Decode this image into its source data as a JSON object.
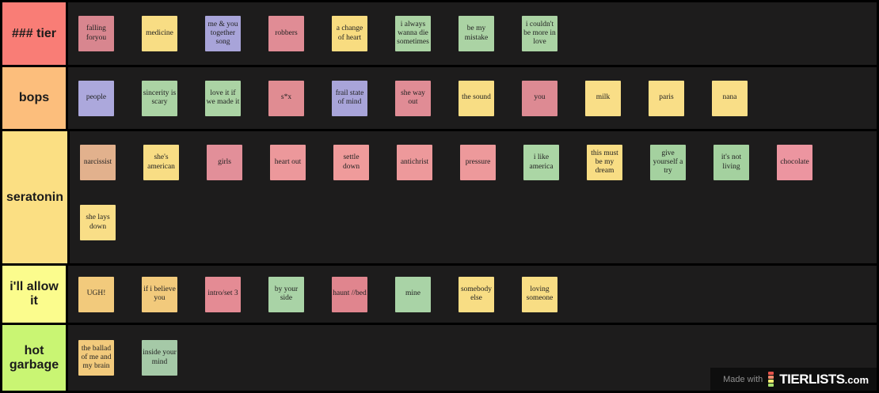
{
  "page": {
    "background": "#1d1c1c",
    "border_color": "#000000"
  },
  "tiers": [
    {
      "label": "### tier",
      "color": "#f97d76",
      "items": [
        {
          "label": "falling foryou",
          "color": "#d8868f"
        },
        {
          "label": "medicine",
          "color": "#f8dd84"
        },
        {
          "label": "me & you together song",
          "color": "#a8a4d9"
        },
        {
          "label": "robbers",
          "color": "#e08c95"
        },
        {
          "label": "a change of heart",
          "color": "#f8dc80"
        },
        {
          "label": "i always wanna die sometimes",
          "color": "#abd3a4"
        },
        {
          "label": "be my mistake",
          "color": "#abd3a4"
        },
        {
          "label": "i couldn't be more in love",
          "color": "#abd3a4"
        }
      ]
    },
    {
      "label": "bops",
      "color": "#fcbe7c",
      "items": [
        {
          "label": "people",
          "color": "#aca8dc"
        },
        {
          "label": "sincerity is scary",
          "color": "#abd3a4"
        },
        {
          "label": "love it if we made it",
          "color": "#abd3a4"
        },
        {
          "label": "s*x",
          "color": "#e08c92"
        },
        {
          "label": "frail state of mind",
          "color": "#a8a4d9"
        },
        {
          "label": "she way out",
          "color": "#e08c95"
        },
        {
          "label": "the sound",
          "color": "#f8dd84"
        },
        {
          "label": "you",
          "color": "#dd8a93"
        },
        {
          "label": "milk",
          "color": "#f9de87"
        },
        {
          "label": "paris",
          "color": "#f9de87"
        },
        {
          "label": "nana",
          "color": "#f9de87"
        }
      ]
    },
    {
      "label": "seratonin",
      "color": "#fbdf83",
      "items": [
        {
          "label": "narcissist",
          "color": "#e2b18d"
        },
        {
          "label": "she's american",
          "color": "#f8dd84"
        },
        {
          "label": "girls",
          "color": "#e28f99"
        },
        {
          "label": "heart out",
          "color": "#ec989b"
        },
        {
          "label": "settle down",
          "color": "#ef9b9b"
        },
        {
          "label": "antichrist",
          "color": "#ed999b"
        },
        {
          "label": "pressure",
          "color": "#ed999b"
        },
        {
          "label": "i like america",
          "color": "#abd6a5"
        },
        {
          "label": "this must be my dream",
          "color": "#f8dd84"
        },
        {
          "label": "give yourself a try",
          "color": "#a4d19f"
        },
        {
          "label": "it's not living",
          "color": "#a4d19f"
        },
        {
          "label": "chocolate",
          "color": "#ec95a0"
        },
        {
          "label": "she lays down",
          "color": "#f9de87"
        }
      ]
    },
    {
      "label": "i'll allow it",
      "color": "#fbfc8d",
      "items": [
        {
          "label": "UGH!",
          "color": "#f2ca7c"
        },
        {
          "label": "if i believe you",
          "color": "#f2ca7c"
        },
        {
          "label": "intro/set 3",
          "color": "#e48b94"
        },
        {
          "label": "by your side",
          "color": "#a9d3a6"
        },
        {
          "label": "haunt //bed",
          "color": "#e0858e"
        },
        {
          "label": "mine",
          "color": "#a9d3a6"
        },
        {
          "label": "somebody else",
          "color": "#f8dd84"
        },
        {
          "label": "loving someone",
          "color": "#f8dd84"
        }
      ]
    },
    {
      "label": "hot garbage",
      "color": "#c9f573",
      "items": [
        {
          "label": "the ballad of me and my brain",
          "color": "#f2ca7c"
        },
        {
          "label": "inside your mind",
          "color": "#a5c9a7"
        }
      ]
    }
  ],
  "watermark": {
    "made_with": "Made with",
    "brand": "TIERLISTS",
    "suffix": ".com",
    "logo_colors": [
      "#e5534b",
      "#f58b6e",
      "#f3ee6f",
      "#a8df6d"
    ]
  }
}
